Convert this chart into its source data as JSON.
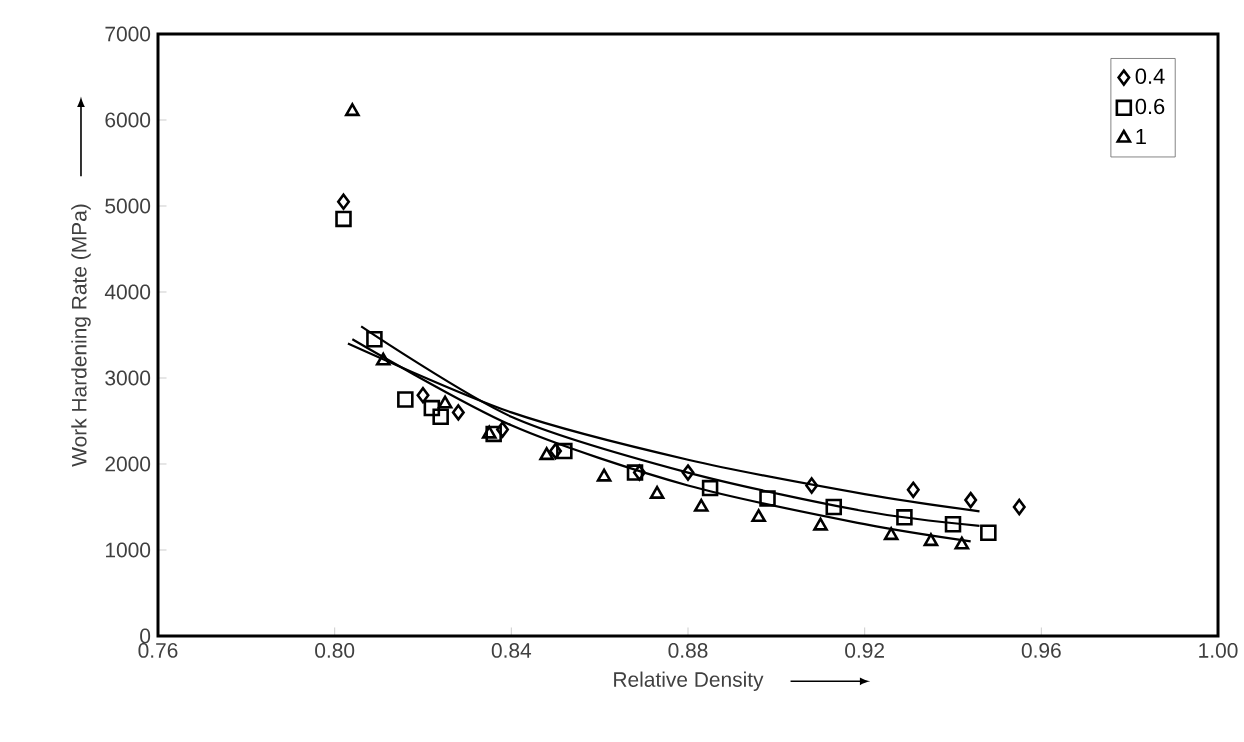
{
  "chart_data": {
    "type": "scatter",
    "xlabel": "Relative Density",
    "ylabel": "Work Hardening Rate (MPa)",
    "xlim": [
      0.76,
      1.0
    ],
    "xticks": [
      {
        "value": 0.76,
        "label": "0.76"
      },
      {
        "value": 0.8,
        "label": "0.80"
      },
      {
        "value": 0.84,
        "label": "0.84"
      },
      {
        "value": 0.88,
        "label": "0.88"
      },
      {
        "value": 0.92,
        "label": "0.92"
      },
      {
        "value": 0.96,
        "label": "0.96"
      },
      {
        "value": 1.0,
        "label": "1.00"
      }
    ],
    "ylim": [
      0,
      7000
    ],
    "yticks": [
      0,
      1000,
      2000,
      3000,
      4000,
      5000,
      6000,
      7000
    ],
    "grid": false,
    "legend": "top right",
    "series": [
      {
        "name": "0.4",
        "color": "#000000",
        "marker": "diamond",
        "x": [
          0.802,
          0.82,
          0.828,
          0.838,
          0.85,
          0.869,
          0.88,
          0.908,
          0.931,
          0.944,
          0.955
        ],
        "values": [
          5050,
          2800,
          2600,
          2400,
          2150,
          1900,
          1900,
          1750,
          1700,
          1580,
          1500
        ]
      },
      {
        "name": "0.6",
        "color": "#000000",
        "marker": "square",
        "x": [
          0.802,
          0.809,
          0.816,
          0.822,
          0.824,
          0.836,
          0.852,
          0.868,
          0.885,
          0.898,
          0.913,
          0.929,
          0.94,
          0.948
        ],
        "values": [
          4850,
          3450,
          2750,
          2650,
          2550,
          2350,
          2150,
          1900,
          1720,
          1600,
          1500,
          1380,
          1300,
          1200
        ]
      },
      {
        "name": "1",
        "color": "#000000",
        "marker": "triangle",
        "x": [
          0.804,
          0.811,
          0.825,
          0.835,
          0.848,
          0.861,
          0.873,
          0.883,
          0.896,
          0.91,
          0.926,
          0.935,
          0.942
        ],
        "values": [
          6100,
          3200,
          2700,
          2350,
          2100,
          1850,
          1650,
          1500,
          1380,
          1280,
          1170,
          1100,
          1060
        ]
      },
      {
        "type": "line",
        "color": "#000000",
        "marker": "none",
        "x": [
          0.803,
          0.84,
          0.88,
          0.92,
          0.946
        ],
        "values": [
          3400,
          2600,
          2050,
          1650,
          1450
        ]
      },
      {
        "type": "line",
        "color": "#000000",
        "marker": "none",
        "x": [
          0.806,
          0.84,
          0.88,
          0.92,
          0.946
        ],
        "values": [
          3600,
          2550,
          1900,
          1450,
          1280
        ]
      },
      {
        "type": "line",
        "color": "#000000",
        "marker": "none",
        "x": [
          0.804,
          0.84,
          0.88,
          0.92,
          0.944
        ],
        "values": [
          3450,
          2450,
          1750,
          1300,
          1100
        ]
      }
    ]
  }
}
